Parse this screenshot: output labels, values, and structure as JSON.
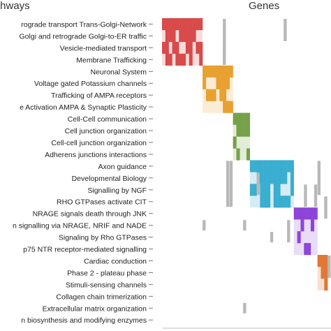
{
  "chart_data": {
    "type": "heatmap",
    "title_left": "thways",
    "title_right": "Genes",
    "pathways": [
      "rograde transport Trans-Golgi-Network",
      "Golgi and retrograde Golgi-to-ER traffic",
      "Vesicle-mediated transport",
      "Membrane Trafficking",
      "Neuronal System",
      "Voltage gated Potassium channels",
      "Trafficking of AMPA receptors",
      "e Activation AMPA & Synaptic Plasticity",
      "Cell-Cell communication",
      "Cell junction organization",
      "Cell-cell junction organization",
      "Adherens junctions interactions",
      "Axon guidance",
      "Developmental Biology",
      "Signalling by NGF",
      "RHO GTPases activate CIT",
      "NRAGE signals death through JNK",
      "n signalling via NRAGE, NRIF and NADE",
      "Signaling by Rho GTPases",
      "p75 NTR receptor-mediated signalling",
      "Cardiac conduction",
      "Phase 2 - plateau phase",
      "Stimuli-sensing channels",
      "Collagen chain trimerization",
      "Extracellular matrix organization",
      "n biosynthesis and modifying enzymes"
    ],
    "clusters": [
      {
        "name": "Membrane Trafficking",
        "color": "#d94a4a",
        "light": "#f8dcdc",
        "rows": [
          0,
          3
        ],
        "genes": [
          0,
          11
        ]
      },
      {
        "name": "Neuronal System",
        "color": "#e8a030",
        "light": "#faecd5",
        "rows": [
          4,
          7
        ],
        "genes": [
          12,
          20
        ]
      },
      {
        "name": "Cell junction organization",
        "color": "#77a04a",
        "light": "#e2ecd6",
        "rows": [
          8,
          11
        ],
        "genes": [
          21,
          25
        ]
      },
      {
        "name": "Axon guidance",
        "color": "#3aaed0",
        "light": "#d5ecf5",
        "rows": [
          12,
          15
        ],
        "genes": [
          26,
          38
        ]
      },
      {
        "name": "p75 NTR receptor-mediated signalling",
        "color": "#8e44d8",
        "light": "#e8dcf6",
        "rows": [
          16,
          19
        ],
        "genes": [
          39,
          45
        ]
      },
      {
        "name": "Cardiac conduction",
        "color": "#e07838",
        "light": "#f8e0d0",
        "rows": [
          20,
          22
        ],
        "genes": [
          46,
          48
        ]
      }
    ],
    "gray_color": "#b8b8b8"
  }
}
